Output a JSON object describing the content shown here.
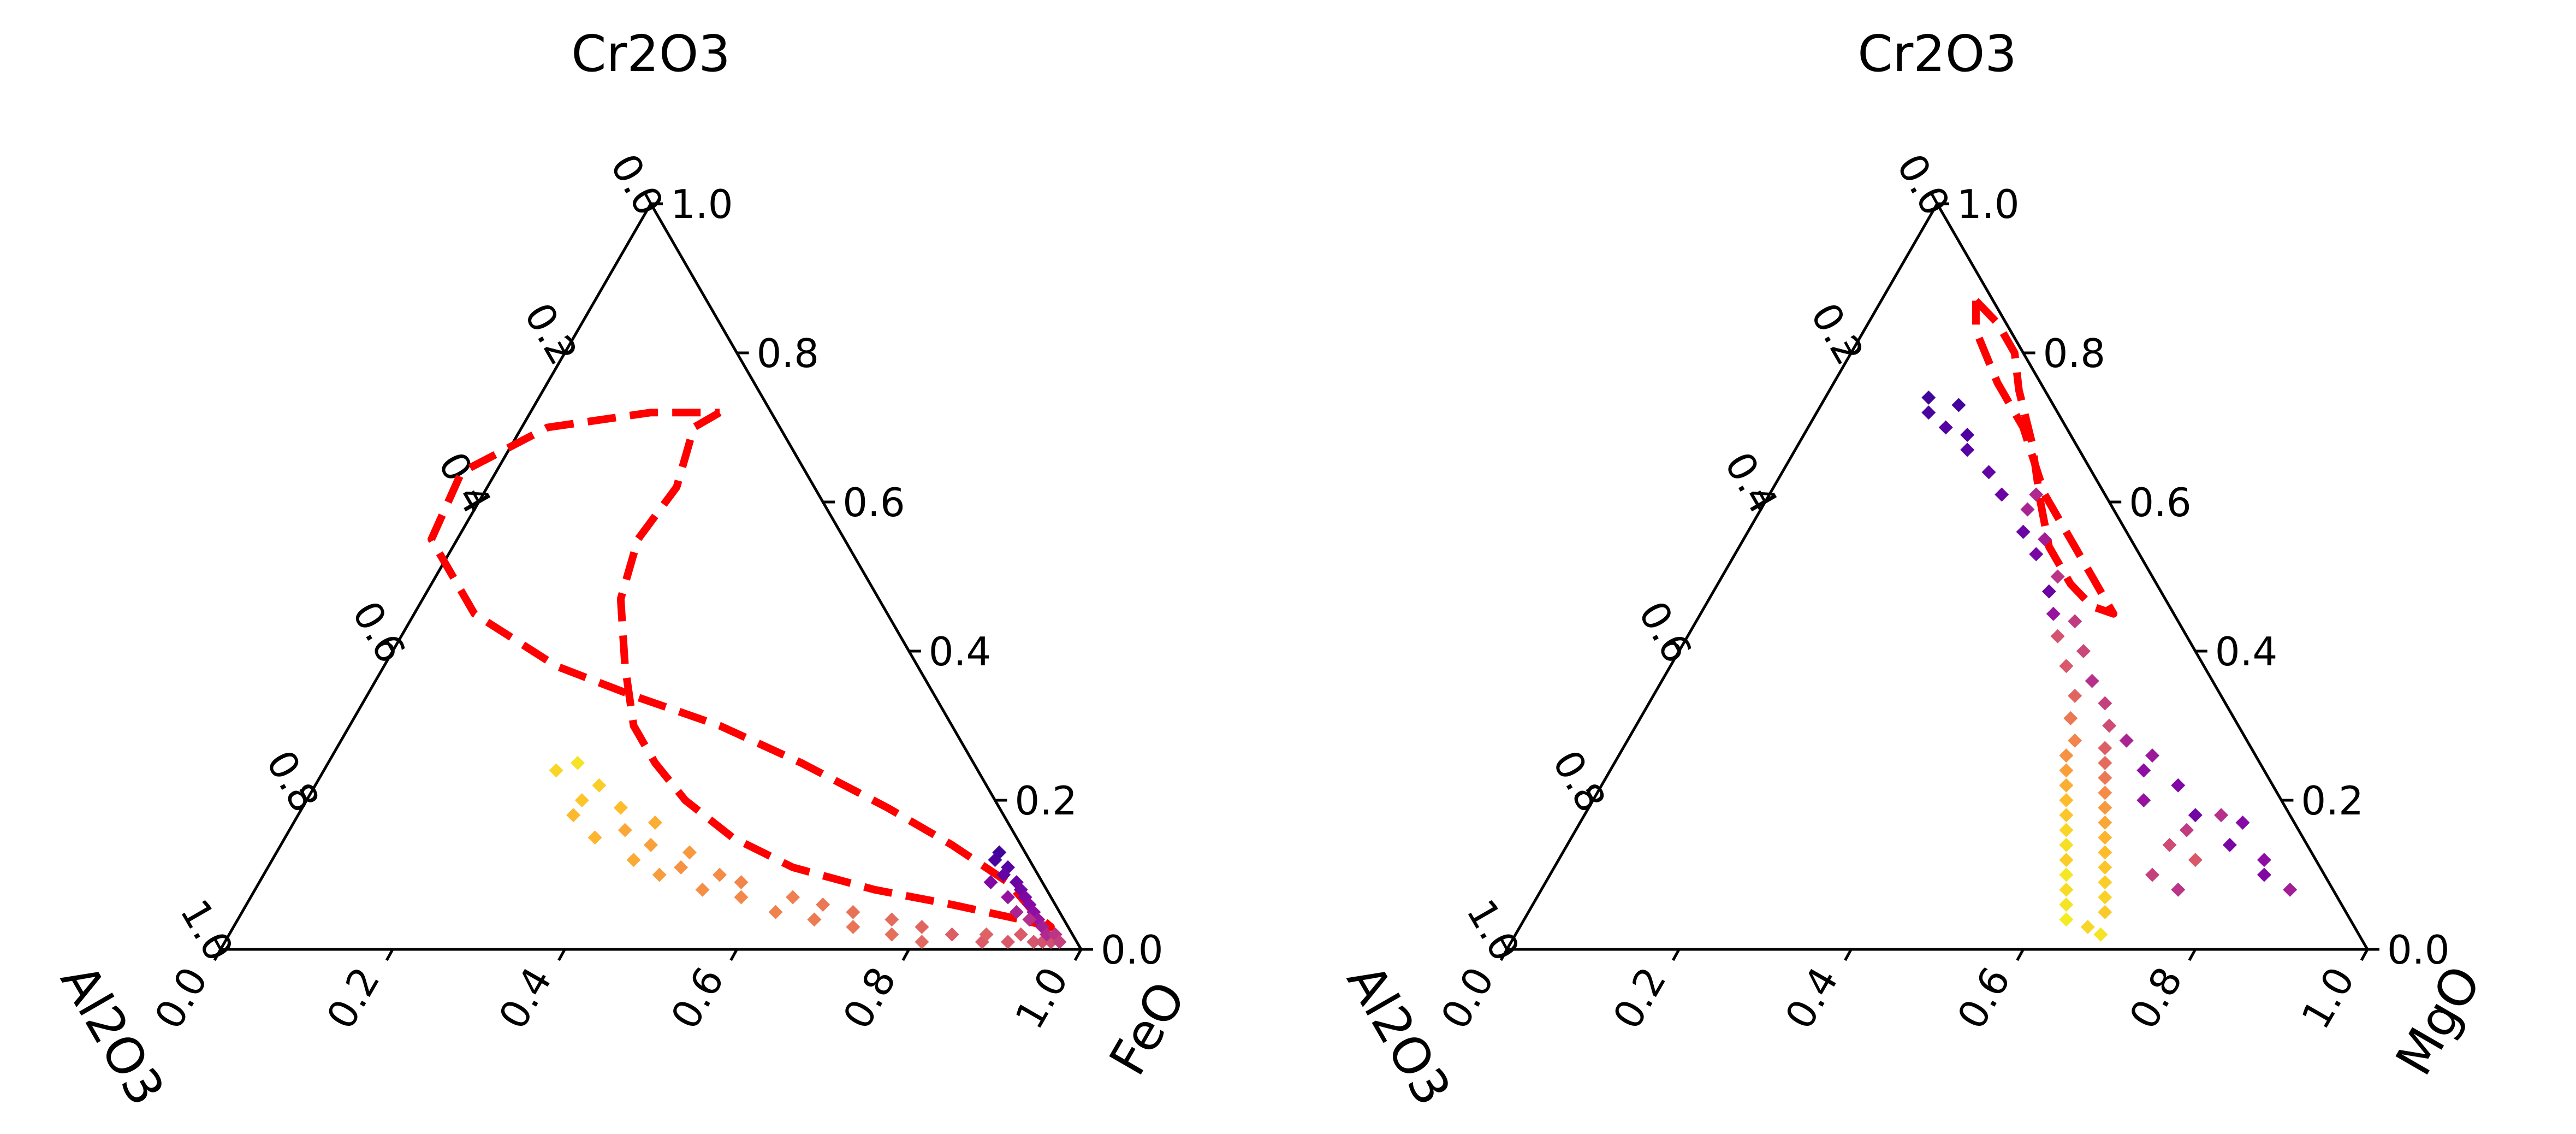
{
  "chart_data": [
    {
      "type": "scatter",
      "chart_kind": "ternary",
      "components": {
        "top": "Cr2O3",
        "left": "Al2O3",
        "right": "FeO"
      },
      "tick_labels": [
        "0.0",
        "0.2",
        "0.4",
        "0.6",
        "0.8",
        "1.0"
      ],
      "boundary_color": "#ff0000",
      "colormap": "plasma",
      "boundary": [
        [
          0.72,
          0.06,
          0.22
        ],
        [
          0.7,
          0.1,
          0.2
        ],
        [
          0.62,
          0.16,
          0.22
        ],
        [
          0.55,
          0.24,
          0.21
        ],
        [
          0.47,
          0.3,
          0.23
        ],
        [
          0.38,
          0.34,
          0.28
        ],
        [
          0.3,
          0.37,
          0.33
        ],
        [
          0.25,
          0.37,
          0.38
        ],
        [
          0.2,
          0.36,
          0.44
        ],
        [
          0.15,
          0.33,
          0.52
        ],
        [
          0.11,
          0.28,
          0.61
        ],
        [
          0.08,
          0.2,
          0.72
        ],
        [
          0.06,
          0.12,
          0.82
        ],
        [
          0.04,
          0.05,
          0.91
        ],
        [
          0.03,
          0.02,
          0.95
        ],
        [
          0.05,
          0.03,
          0.92
        ],
        [
          0.09,
          0.04,
          0.87
        ],
        [
          0.14,
          0.08,
          0.78
        ],
        [
          0.19,
          0.13,
          0.68
        ],
        [
          0.25,
          0.2,
          0.55
        ],
        [
          0.3,
          0.27,
          0.43
        ],
        [
          0.34,
          0.35,
          0.31
        ],
        [
          0.38,
          0.42,
          0.2
        ],
        [
          0.45,
          0.48,
          0.07
        ],
        [
          0.55,
          0.48,
          -0.03
        ],
        [
          0.64,
          0.4,
          -0.04
        ],
        [
          0.7,
          0.27,
          0.03
        ],
        [
          0.72,
          0.14,
          0.14
        ],
        [
          0.72,
          0.06,
          0.22
        ]
      ],
      "series": [
        {
          "points": [
            [
              0.25,
              0.46,
              0.29,
              0.95
            ],
            [
              0.24,
              0.49,
              0.27,
              0.92
            ],
            [
              0.22,
              0.45,
              0.33,
              0.9
            ],
            [
              0.2,
              0.48,
              0.32,
              0.88
            ],
            [
              0.18,
              0.5,
              0.32,
              0.85
            ],
            [
              0.19,
              0.44,
              0.37,
              0.86
            ],
            [
              0.17,
              0.41,
              0.42,
              0.82
            ],
            [
              0.16,
              0.45,
              0.39,
              0.8
            ],
            [
              0.15,
              0.49,
              0.36,
              0.84
            ],
            [
              0.14,
              0.43,
              0.43,
              0.78
            ],
            [
              0.13,
              0.39,
              0.48,
              0.76
            ],
            [
              0.12,
              0.46,
              0.42,
              0.81
            ],
            [
              0.11,
              0.41,
              0.48,
              0.74
            ],
            [
              0.1,
              0.37,
              0.53,
              0.72
            ],
            [
              0.1,
              0.44,
              0.46,
              0.77
            ],
            [
              0.09,
              0.35,
              0.56,
              0.7
            ],
            [
              0.08,
              0.4,
              0.52,
              0.73
            ],
            [
              0.07,
              0.3,
              0.63,
              0.68
            ],
            [
              0.07,
              0.36,
              0.57,
              0.71
            ],
            [
              0.06,
              0.27,
              0.67,
              0.66
            ],
            [
              0.05,
              0.33,
              0.62,
              0.69
            ],
            [
              0.05,
              0.24,
              0.71,
              0.64
            ],
            [
              0.04,
              0.29,
              0.67,
              0.67
            ],
            [
              0.04,
              0.2,
              0.76,
              0.62
            ],
            [
              0.03,
              0.25,
              0.72,
              0.65
            ],
            [
              0.03,
              0.17,
              0.8,
              0.6
            ],
            [
              0.02,
              0.21,
              0.77,
              0.63
            ],
            [
              0.02,
              0.14,
              0.84,
              0.58
            ],
            [
              0.01,
              0.18,
              0.81,
              0.61
            ],
            [
              0.01,
              0.11,
              0.88,
              0.57
            ],
            [
              0.01,
              0.08,
              0.91,
              0.56
            ],
            [
              0.01,
              0.05,
              0.94,
              0.55
            ],
            [
              0.02,
              0.1,
              0.88,
              0.59
            ],
            [
              0.02,
              0.06,
              0.92,
              0.57
            ],
            [
              0.01,
              0.04,
              0.95,
              0.54
            ],
            [
              0.01,
              0.03,
              0.96,
              0.53
            ],
            [
              0.13,
              0.03,
              0.84,
              0.1
            ],
            [
              0.12,
              0.04,
              0.84,
              0.12
            ],
            [
              0.11,
              0.03,
              0.86,
              0.15
            ],
            [
              0.1,
              0.04,
              0.86,
              0.18
            ],
            [
              0.09,
              0.03,
              0.88,
              0.2
            ],
            [
              0.08,
              0.03,
              0.89,
              0.22
            ],
            [
              0.07,
              0.03,
              0.9,
              0.25
            ],
            [
              0.06,
              0.03,
              0.91,
              0.28
            ],
            [
              0.05,
              0.03,
              0.92,
              0.3
            ],
            [
              0.04,
              0.03,
              0.93,
              0.33
            ],
            [
              0.03,
              0.03,
              0.94,
              0.36
            ],
            [
              0.02,
              0.03,
              0.95,
              0.4
            ],
            [
              0.02,
              0.02,
              0.96,
              0.44
            ],
            [
              0.01,
              0.02,
              0.97,
              0.48
            ],
            [
              0.09,
              0.06,
              0.85,
              0.26
            ],
            [
              0.07,
              0.05,
              0.88,
              0.32
            ],
            [
              0.05,
              0.05,
              0.9,
              0.38
            ],
            [
              0.04,
              0.04,
              0.92,
              0.42
            ]
          ]
        }
      ]
    },
    {
      "type": "scatter",
      "chart_kind": "ternary",
      "components": {
        "top": "Cr2O3",
        "left": "Al2O3",
        "right": "MgO"
      },
      "tick_labels": [
        "0.0",
        "0.2",
        "0.4",
        "0.6",
        "0.8",
        "1.0"
      ],
      "boundary_color": "#ff0000",
      "colormap": "plasma",
      "boundary": [
        [
          0.87,
          0.02,
          0.11
        ],
        [
          0.84,
          0.01,
          0.15
        ],
        [
          0.8,
          0.01,
          0.19
        ],
        [
          0.75,
          0.03,
          0.22
        ],
        [
          0.68,
          0.05,
          0.27
        ],
        [
          0.6,
          0.08,
          0.32
        ],
        [
          0.54,
          0.1,
          0.36
        ],
        [
          0.49,
          0.1,
          0.41
        ],
        [
          0.46,
          0.09,
          0.45
        ],
        [
          0.45,
          0.07,
          0.48
        ],
        [
          0.46,
          0.07,
          0.47
        ],
        [
          0.52,
          0.07,
          0.41
        ],
        [
          0.61,
          0.07,
          0.32
        ],
        [
          0.7,
          0.05,
          0.25
        ],
        [
          0.76,
          0.05,
          0.19
        ],
        [
          0.83,
          0.04,
          0.13
        ],
        [
          0.87,
          0.02,
          0.11
        ]
      ],
      "series": [
        {
          "points": [
            [
              0.74,
              0.14,
              0.12,
              0.1
            ],
            [
              0.72,
              0.15,
              0.13,
              0.12
            ],
            [
              0.7,
              0.14,
              0.16,
              0.14
            ],
            [
              0.73,
              0.11,
              0.16,
              0.11
            ],
            [
              0.69,
              0.12,
              0.19,
              0.13
            ],
            [
              0.67,
              0.13,
              0.2,
              0.15
            ],
            [
              0.64,
              0.12,
              0.24,
              0.18
            ],
            [
              0.61,
              0.12,
              0.27,
              0.2
            ],
            [
              0.61,
              0.08,
              0.31,
              0.4
            ],
            [
              0.59,
              0.1,
              0.31,
              0.38
            ],
            [
              0.56,
              0.12,
              0.32,
              0.2
            ],
            [
              0.55,
              0.1,
              0.35,
              0.36
            ],
            [
              0.53,
              0.12,
              0.35,
              0.24
            ],
            [
              0.5,
              0.11,
              0.39,
              0.44
            ],
            [
              0.48,
              0.13,
              0.39,
              0.2
            ],
            [
              0.45,
              0.14,
              0.41,
              0.32
            ],
            [
              0.44,
              0.12,
              0.44,
              0.46
            ],
            [
              0.42,
              0.15,
              0.43,
              0.54
            ],
            [
              0.4,
              0.13,
              0.47,
              0.5
            ],
            [
              0.38,
              0.16,
              0.46,
              0.56
            ],
            [
              0.36,
              0.14,
              0.5,
              0.42
            ],
            [
              0.34,
              0.17,
              0.49,
              0.6
            ],
            [
              0.33,
              0.14,
              0.53,
              0.48
            ],
            [
              0.31,
              0.19,
              0.5,
              0.66
            ],
            [
              0.3,
              0.15,
              0.55,
              0.52
            ],
            [
              0.28,
              0.2,
              0.52,
              0.7
            ],
            [
              0.27,
              0.17,
              0.56,
              0.58
            ],
            [
              0.26,
              0.22,
              0.52,
              0.74
            ],
            [
              0.25,
              0.18,
              0.57,
              0.62
            ],
            [
              0.24,
              0.23,
              0.53,
              0.78
            ],
            [
              0.23,
              0.19,
              0.58,
              0.66
            ],
            [
              0.22,
              0.24,
              0.54,
              0.82
            ],
            [
              0.21,
              0.2,
              0.59,
              0.72
            ],
            [
              0.2,
              0.25,
              0.55,
              0.86
            ],
            [
              0.19,
              0.21,
              0.6,
              0.76
            ],
            [
              0.18,
              0.26,
              0.56,
              0.88
            ],
            [
              0.17,
              0.22,
              0.61,
              0.8
            ],
            [
              0.16,
              0.27,
              0.57,
              0.92
            ],
            [
              0.15,
              0.23,
              0.62,
              0.84
            ],
            [
              0.14,
              0.28,
              0.58,
              0.94
            ],
            [
              0.13,
              0.24,
              0.63,
              0.86
            ],
            [
              0.12,
              0.29,
              0.59,
              0.9
            ],
            [
              0.11,
              0.25,
              0.64,
              0.88
            ],
            [
              0.1,
              0.3,
              0.6,
              0.96
            ],
            [
              0.09,
              0.26,
              0.65,
              0.9
            ],
            [
              0.08,
              0.31,
              0.61,
              0.93
            ],
            [
              0.07,
              0.27,
              0.66,
              0.91
            ],
            [
              0.06,
              0.32,
              0.62,
              0.95
            ],
            [
              0.05,
              0.28,
              0.67,
              0.89
            ],
            [
              0.04,
              0.33,
              0.63,
              0.97
            ],
            [
              0.03,
              0.31,
              0.66,
              0.92
            ],
            [
              0.02,
              0.3,
              0.68,
              0.95
            ],
            [
              0.28,
              0.14,
              0.58,
              0.38
            ],
            [
              0.26,
              0.12,
              0.62,
              0.34
            ],
            [
              0.24,
              0.14,
              0.62,
              0.3
            ],
            [
              0.22,
              0.11,
              0.67,
              0.26
            ],
            [
              0.2,
              0.16,
              0.64,
              0.32
            ],
            [
              0.18,
              0.11,
              0.71,
              0.22
            ],
            [
              0.17,
              0.06,
              0.77,
              0.28
            ],
            [
              0.14,
              0.09,
              0.77,
              0.24
            ],
            [
              0.12,
              0.06,
              0.82,
              0.3
            ],
            [
              0.1,
              0.07,
              0.83,
              0.26
            ],
            [
              0.08,
              0.05,
              0.87,
              0.36
            ],
            [
              0.18,
              0.08,
              0.74,
              0.42
            ],
            [
              0.16,
              0.13,
              0.71,
              0.46
            ],
            [
              0.14,
              0.16,
              0.7,
              0.52
            ],
            [
              0.12,
              0.14,
              0.74,
              0.56
            ],
            [
              0.1,
              0.2,
              0.7,
              0.48
            ],
            [
              0.08,
              0.18,
              0.74,
              0.44
            ]
          ]
        }
      ]
    }
  ]
}
